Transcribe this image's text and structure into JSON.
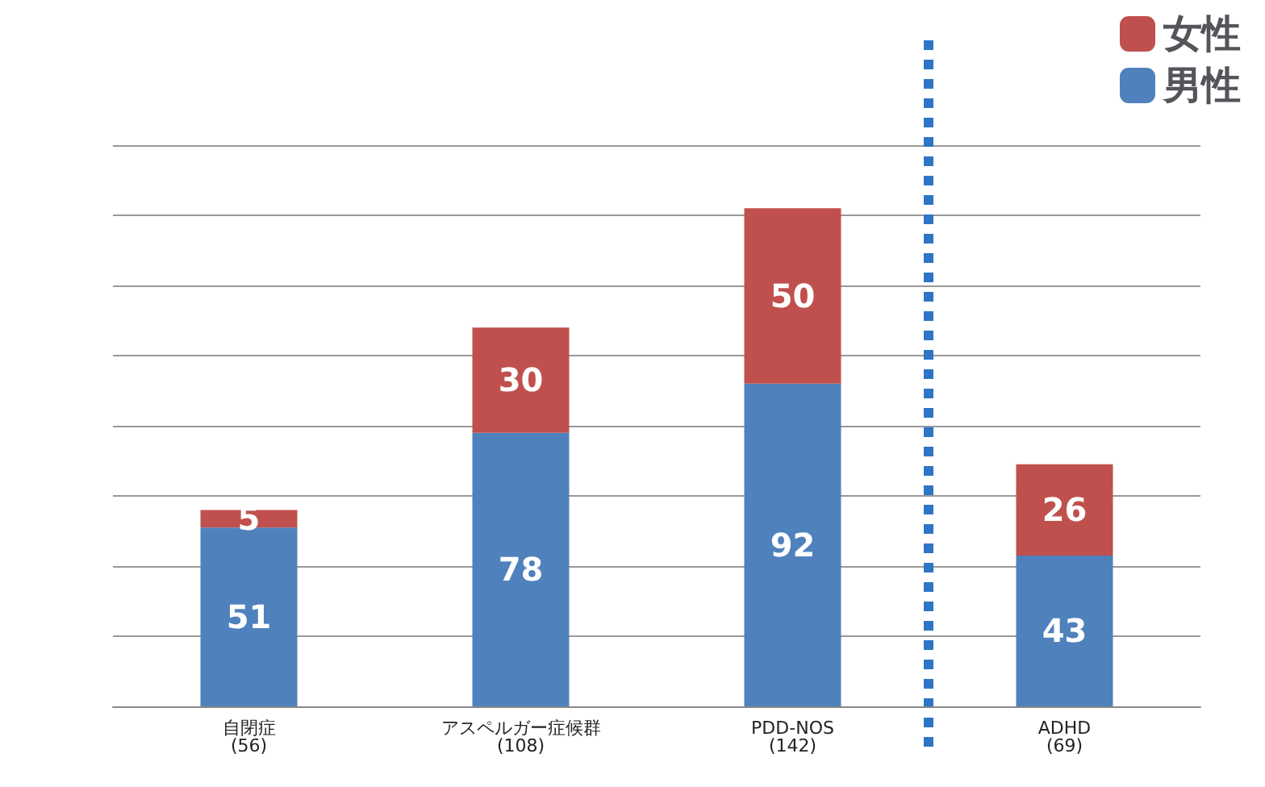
{
  "chart_data": {
    "type": "bar",
    "stacked": true,
    "categories": [
      "自閉症\n(56)",
      "アスペルガー症候群\n(108)",
      "PDD-NOS\n(142)",
      "ADHD\n(69)"
    ],
    "series": [
      {
        "name": "男性",
        "color": "#4f81bd",
        "values": [
          51,
          78,
          92,
          43
        ]
      },
      {
        "name": "女性",
        "color": "#c0504d",
        "values": [
          5,
          30,
          50,
          26
        ]
      }
    ],
    "ref_lines": [
      {
        "axis": "x",
        "value": "ADHD\n(69)",
        "color": "#2e75c6",
        "line_style": "dotted"
      }
    ],
    "data_labels": true,
    "legend": "top right",
    "grid": "y",
    "tick_labels": "x",
    "ylim": [
      0,
      160
    ],
    "yticks": [
      {
        "value": 0,
        "label": null
      },
      {
        "value": 20,
        "label": null
      },
      {
        "value": 40,
        "label": null
      },
      {
        "value": 60,
        "label": null
      },
      {
        "value": 80,
        "label": null
      },
      {
        "value": 100,
        "label": null
      },
      {
        "value": 120,
        "label": null
      },
      {
        "value": 140,
        "label": null
      },
      {
        "value": 160,
        "label": null
      }
    ]
  }
}
